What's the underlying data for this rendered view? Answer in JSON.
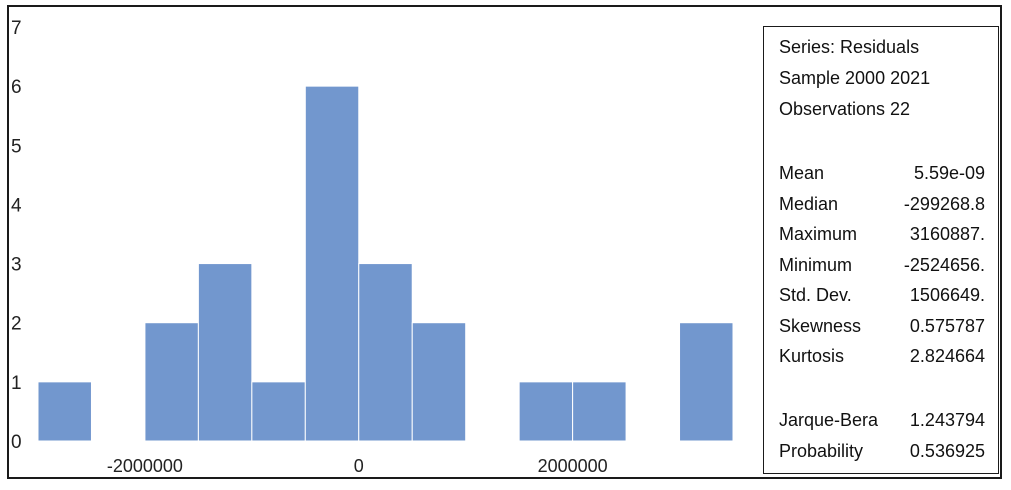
{
  "chart_data": {
    "type": "bar",
    "subtype": "histogram",
    "bin_width": 500000,
    "bins": [
      {
        "from": -3000000,
        "to": -2500000,
        "count": 1
      },
      {
        "from": -2500000,
        "to": -2000000,
        "count": 0
      },
      {
        "from": -2000000,
        "to": -1500000,
        "count": 2
      },
      {
        "from": -1500000,
        "to": -1000000,
        "count": 3
      },
      {
        "from": -1000000,
        "to": -500000,
        "count": 1
      },
      {
        "from": -500000,
        "to": 0,
        "count": 6
      },
      {
        "from": 0,
        "to": 500000,
        "count": 3
      },
      {
        "from": 500000,
        "to": 1000000,
        "count": 2
      },
      {
        "from": 1000000,
        "to": 1500000,
        "count": 0
      },
      {
        "from": 1500000,
        "to": 2000000,
        "count": 1
      },
      {
        "from": 2000000,
        "to": 2500000,
        "count": 1
      },
      {
        "from": 2500000,
        "to": 3000000,
        "count": 0
      },
      {
        "from": 3000000,
        "to": 3500000,
        "count": 2
      }
    ],
    "xlim": [
      -3000000,
      3500000
    ],
    "ylim": [
      0,
      7
    ],
    "x_ticks": [
      -2000000,
      0,
      2000000
    ],
    "x_tick_labels": [
      "-2000000",
      "0",
      "2000000"
    ],
    "y_ticks": [
      0,
      1,
      2,
      3,
      4,
      5,
      6,
      7
    ],
    "y_tick_labels": [
      "0",
      "1",
      "2",
      "3",
      "4",
      "5",
      "6",
      "7"
    ],
    "bar_color": "#7297CE",
    "grid": false,
    "legend": "none"
  },
  "stats": {
    "series": "Series: Residuals",
    "sample": "Sample 2000 2021",
    "observations": "Observations 22",
    "rows": [
      {
        "label": "Mean",
        "value": "5.59e-09"
      },
      {
        "label": "Median",
        "value": "-299268.8"
      },
      {
        "label": "Maximum",
        "value": "3160887."
      },
      {
        "label": "Minimum",
        "value": "-2524656."
      },
      {
        "label": "Std. Dev.",
        "value": "1506649."
      },
      {
        "label": "Skewness",
        "value": "0.575787"
      },
      {
        "label": "Kurtosis",
        "value": "2.824664"
      }
    ],
    "rows2": [
      {
        "label": "Jarque-Bera",
        "value": "1.243794"
      },
      {
        "label": "Probability",
        "value": "0.536925"
      }
    ]
  }
}
